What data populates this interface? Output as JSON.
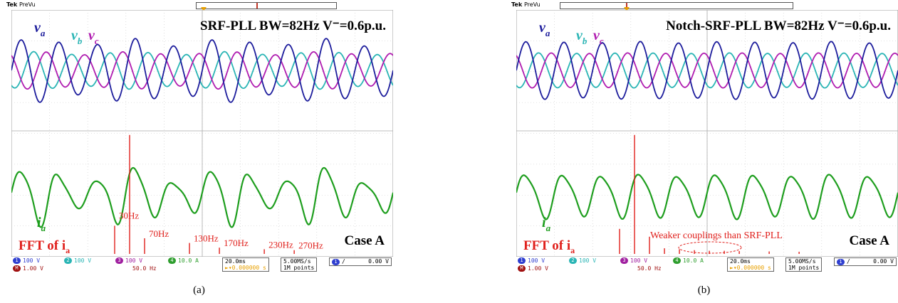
{
  "chart_data": [
    {
      "type": "line",
      "panel_label": "(a)",
      "title_text": "SRF-PLL BW=82Hz V⁻=0.6p.u.",
      "case_label": "Case A",
      "fft_label": "FFT of i",
      "fft_subscript": "a",
      "series_labels": {
        "va": "v",
        "vb": "v",
        "vc": "v",
        "ia": "i"
      },
      "subscripts": {
        "va": "a",
        "vb": "b",
        "vc": "c",
        "ia": "a"
      },
      "series": [
        {
          "key": "va",
          "freq_hz": 50,
          "amplitude_div": 1.8,
          "dist_freq_hz": 30,
          "dist_amp_div": 0.25
        },
        {
          "key": "vb",
          "freq_hz": 50,
          "amplitude_div": 1.1,
          "phase_deg": -120,
          "dist_freq_hz": 30,
          "dist_amp_div": 0.1
        },
        {
          "key": "vc",
          "freq_hz": 50,
          "amplitude_div": 1.1,
          "phase_deg": 120,
          "dist_freq_hz": 30,
          "dist_amp_div": 0.1
        },
        {
          "key": "ia",
          "freq_hz": 50,
          "amplitude_div": 1.3,
          "dist_freq_hz": 30,
          "dist_amp_div": 0.55
        }
      ],
      "fft_peaks": [
        {
          "f": 30,
          "label": "30Hz",
          "h": 0.9
        },
        {
          "f": 50,
          "label": "",
          "h": 3.8
        },
        {
          "f": 70,
          "label": "70Hz",
          "h": 0.5
        },
        {
          "f": 130,
          "label": "130Hz",
          "h": 0.35
        },
        {
          "f": 170,
          "label": "170Hz",
          "h": 0.2
        },
        {
          "f": 230,
          "label": "230Hz",
          "h": 0.15
        },
        {
          "f": 270,
          "label": "270Hz",
          "h": 0.12
        }
      ],
      "status": {
        "ch1": "1",
        "ch1_scale": "100 V",
        "ch2": "2",
        "ch2_scale": "100 V",
        "ch3": "3",
        "ch3_scale": "100 V",
        "ch4": "4",
        "ch4_scale": "10.0 A",
        "math": "M",
        "math_scale": "1.00 V",
        "math_span": "50.0 Hz",
        "timebase": "20.0ms",
        "delay": "►▾0.000000 s",
        "rate": "5.00MS/s",
        "points": "1M points",
        "trig_ch": "1",
        "trig_slope": "∕",
        "trig_level": "0.00 V"
      },
      "header": {
        "brand": "Tek",
        "mode": "PreVu"
      }
    },
    {
      "type": "line",
      "panel_label": "(b)",
      "title_text": "Notch-SRF-PLL BW=82Hz V⁻=0.6p.u.",
      "case_label": "Case A",
      "fft_label": "FFT of i",
      "fft_subscript": "a",
      "annotation": "Weaker couplings than SRF-PLL",
      "series_labels": {
        "va": "v",
        "vb": "v",
        "vc": "v",
        "ia": "i"
      },
      "subscripts": {
        "va": "a",
        "vb": "b",
        "vc": "c",
        "ia": "a"
      },
      "series": [
        {
          "key": "va",
          "freq_hz": 50,
          "amplitude_div": 1.8,
          "dist_freq_hz": 30,
          "dist_amp_div": 0.05
        },
        {
          "key": "vb",
          "freq_hz": 50,
          "amplitude_div": 1.1,
          "phase_deg": -120,
          "dist_freq_hz": 30,
          "dist_amp_div": 0.02
        },
        {
          "key": "vc",
          "freq_hz": 50,
          "amplitude_div": 1.1,
          "phase_deg": 120,
          "dist_freq_hz": 30,
          "dist_amp_div": 0.02
        },
        {
          "key": "ia",
          "freq_hz": 50,
          "amplitude_div": 1.3,
          "dist_freq_hz": 30,
          "dist_amp_div": 0.08
        }
      ],
      "fft_peaks": [
        {
          "f": 30,
          "label": "",
          "h": 0.8
        },
        {
          "f": 50,
          "label": "",
          "h": 3.8
        },
        {
          "f": 70,
          "label": "",
          "h": 0.55
        },
        {
          "f": 90,
          "label": "",
          "h": 0.18
        },
        {
          "f": 110,
          "label": "",
          "h": 0.15
        },
        {
          "f": 130,
          "label": "",
          "h": 0.12
        },
        {
          "f": 150,
          "label": "",
          "h": 0.1
        },
        {
          "f": 170,
          "label": "",
          "h": 0.1
        },
        {
          "f": 190,
          "label": "",
          "h": 0.09
        },
        {
          "f": 230,
          "label": "",
          "h": 0.08
        },
        {
          "f": 270,
          "label": "",
          "h": 0.07
        }
      ],
      "status": {
        "ch1": "1",
        "ch1_scale": "100 V",
        "ch2": "2",
        "ch2_scale": "100 V",
        "ch3": "3",
        "ch3_scale": "100 V",
        "ch4": "4",
        "ch4_scale": "10.0 A",
        "math": "M",
        "math_scale": "1.00 V",
        "math_span": "50.0 Hz",
        "timebase": "20.0ms",
        "delay": "►▾0.000000 s",
        "rate": "5.00MS/s",
        "points": "1M points",
        "trig_ch": "1",
        "trig_slope": "∕",
        "trig_level": "0.00 V"
      },
      "header": {
        "brand": "Tek",
        "mode": "PreVu"
      }
    }
  ],
  "colors": {
    "va": "#1c1c9c",
    "vb": "#2ab5b5",
    "vc": "#b01cb0",
    "ia": "#1e9e1e",
    "fft": "#e0201c",
    "grid": "#c8c8c8",
    "ch1": "#2f3fd0",
    "ch2": "#2ab5b5",
    "ch3": "#a020a0",
    "ch4": "#2e9e2e",
    "math": "#a01010"
  },
  "grid": {
    "divisions_x": 10,
    "divisions_y": 8
  }
}
